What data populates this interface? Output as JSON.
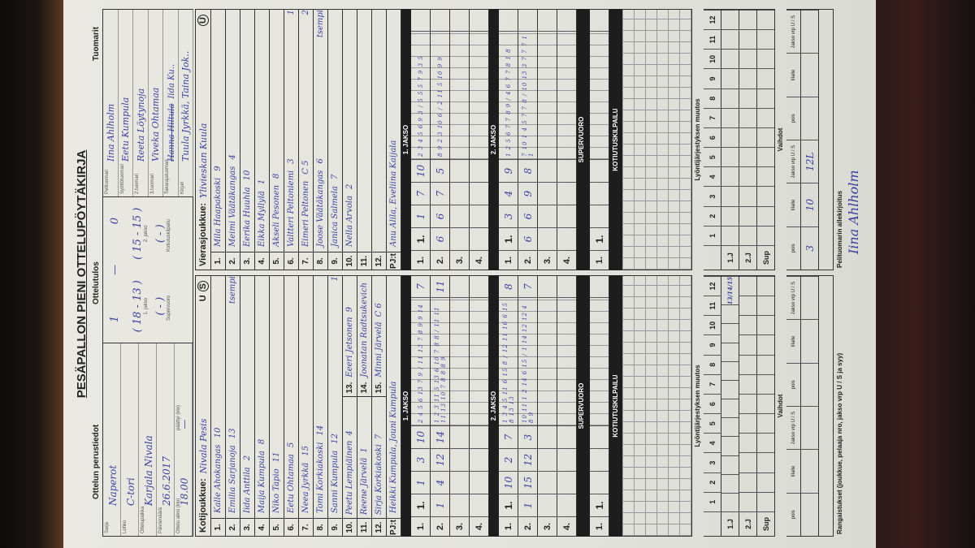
{
  "title": "PESÄPALLON PIENI OTTELUPÖYTÄKIRJA",
  "sections": {
    "basic": "Ottelun perustiedot",
    "result": "Ottelutulos",
    "referees": "Tuomarit"
  },
  "basic": [
    {
      "label": "Sarja",
      "value": "Naperot"
    },
    {
      "label": "Lohko",
      "value": "C-tori"
    },
    {
      "label": "Ottelupaikka",
      "value": "Karjala Nivala"
    },
    {
      "label": "Päivämäärä",
      "value": "26.6.2017"
    },
    {
      "label": "Ottelu alkoi (klo)",
      "value": "18.00",
      "label2": "päättyi (klo)",
      "value2": "—"
    }
  ],
  "result": {
    "total": {
      "home": "1",
      "away": "0"
    },
    "periods": [
      {
        "label": "1. jakso",
        "home": "18",
        "away": "13"
      },
      {
        "label": "2. jakso",
        "home": "15",
        "away": "15"
      },
      {
        "label": "Supervuoro",
        "home": "",
        "away": ""
      },
      {
        "label": "Kotiutuskilpailu",
        "home": "",
        "away": ""
      }
    ]
  },
  "referees": [
    {
      "label": "Pelituomari",
      "value": "Iina Ahlholm"
    },
    {
      "label": "Syöttötuomari",
      "value": "Eetu Kumpula"
    },
    {
      "label": "2.tuomari",
      "value": "Reeta Löytynoja"
    },
    {
      "label": "3.tuomari",
      "value": "Viveka Ohtamaa"
    },
    {
      "label": "Takarajatuomari",
      "value": "Iida Ku..",
      "struck": "Hanna Hiltula"
    },
    {
      "label": "Kirjuri",
      "value": "Tuula Jyrkkä, Taina Jok.."
    }
  ],
  "home": {
    "label": "Kotijoukkue:",
    "name": "Nivala Pesis",
    "us": [
      "U",
      "S"
    ],
    "circled": "S",
    "players": [
      {
        "num": "1.",
        "name": "Kalle Ahokangas",
        "shirt": "10"
      },
      {
        "num": "2.",
        "name": "Emilia Sarjanoja",
        "shirt": "13",
        "note": "tsempi"
      },
      {
        "num": "3.",
        "name": "Iida Anttila",
        "shirt": "2"
      },
      {
        "num": "4.",
        "name": "Maija Kumpula",
        "shirt": "8"
      },
      {
        "num": "5.",
        "name": "Niko Tapio",
        "shirt": "11"
      },
      {
        "num": "6.",
        "name": "Eetu Ohtamaa",
        "shirt": "5"
      },
      {
        "num": "7.",
        "name": "Neea Jyrkkä",
        "shirt": "15"
      },
      {
        "num": "8.",
        "name": "Tomi Korkiakoski",
        "shirt": "14"
      },
      {
        "num": "9.",
        "name": "Sanni Kumpula",
        "shirt": "12",
        "note": "1"
      },
      {
        "num": "10.",
        "name": "Peetu Lempiäinen",
        "shirt": "4",
        "sub": {
          "num": "13.",
          "name": "Eeeri Jetsonen",
          "shirt": "9"
        }
      },
      {
        "num": "11.",
        "name": "Reene Järvelä",
        "shirt": "1",
        "sub": {
          "num": "14.",
          "name": "Joonatan Radtsukevich",
          "shirt": ""
        }
      },
      {
        "num": "12.",
        "name": "Sirja Korkiakoski",
        "shirt": "7",
        "sub": {
          "num": "15.",
          "name": "Minni Järvelä",
          "shirt": "C 6"
        }
      }
    ],
    "pj_label": "PJ:t",
    "pj": "Heikki Kumpula, Jouni Kumpula",
    "periods": [
      {
        "title": "1. JAKSO",
        "rows": [
          {
            "label": "1.",
            "cells": [
              "1.",
              "1",
              "3",
              "10"
            ],
            "notes": "2 4 5 6 13 7 9 / 11 13 7 8 9 9 14",
            "total": "7"
          },
          {
            "label": "2.",
            "cells": [
              "1",
              "4",
              "12",
              "14"
            ],
            "notes": "1 2 3 11 5 13 6 10 7 8 8 / 11 11 11 13 10 7 8 8 8 9",
            "total": "11"
          },
          {
            "label": "3.",
            "cells": [
              "",
              "",
              "",
              ""
            ],
            "notes": "",
            "total": ""
          },
          {
            "label": "4.",
            "cells": [
              "",
              "",
              "",
              ""
            ],
            "notes": "",
            "total": ""
          }
        ]
      },
      {
        "title": "2. JAKSO",
        "rows": [
          {
            "label": "1.",
            "cells": [
              "1.",
              "10",
              "2",
              "7"
            ],
            "notes": "1 3 4 5 11 6 15 8 / 12 11 16 6 15 8 13 13",
            "total": "8"
          },
          {
            "label": "2.",
            "cells": [
              "1",
              "15",
              "12",
              "3"
            ],
            "notes": "10 11 1 2 14 6 15 / 1 14 12 12 4 8 9",
            "total": "7"
          },
          {
            "label": "3.",
            "cells": [
              "",
              "",
              "",
              ""
            ],
            "notes": "",
            "total": ""
          },
          {
            "label": "4.",
            "cells": [
              "",
              "",
              "",
              ""
            ],
            "notes": "",
            "total": ""
          }
        ]
      }
    ],
    "super": {
      "title": "SUPERVUORO",
      "row": {
        "label": "1.",
        "cells": [
          "1.",
          "",
          "",
          ""
        ],
        "notes": "",
        "total": ""
      }
    },
    "kotiutus": "KOTIUTUSKILPAILU",
    "footer": "Rangaistukset (joukkue, pelaaja nro, jakso vrp U / S ja syy)"
  },
  "away": {
    "label": "Vierasjoukkue:",
    "name": "Ylivieskan Kuula",
    "us": [
      "U"
    ],
    "circled": "U",
    "players": [
      {
        "num": "1.",
        "name": "Mila Haapakoski",
        "shirt": "9"
      },
      {
        "num": "2.",
        "name": "Meimi Väätäkangas",
        "shirt": "4"
      },
      {
        "num": "3.",
        "name": "Eerika Huuhla",
        "shirt": "10"
      },
      {
        "num": "4.",
        "name": "Eikka Myllylä",
        "shirt": "1"
      },
      {
        "num": "5.",
        "name": "Akseli Pesonen",
        "shirt": "8"
      },
      {
        "num": "6.",
        "name": "Valtteri Peltoniemi",
        "shirt": "3",
        "note": "1"
      },
      {
        "num": "7.",
        "name": "Eimeri Peltonen",
        "shirt": "C 5",
        "note": "2"
      },
      {
        "num": "8.",
        "name": "Joose Väätäkangas",
        "shirt": "6",
        "note": "tsempi"
      },
      {
        "num": "9.",
        "name": "Janica Salmela",
        "shirt": "7"
      },
      {
        "num": "10.",
        "name": "Nella Arvola",
        "shirt": "2"
      },
      {
        "num": "11.",
        "name": "",
        "shirt": ""
      },
      {
        "num": "12.",
        "name": "",
        "shirt": ""
      }
    ],
    "pj_label": "PJ:t",
    "pj": "Anu Alila, Eveliina Kaijala",
    "periods": [
      {
        "title": "1. JAKSO",
        "rows": [
          {
            "label": "1.",
            "cells": [
              "1.",
              "1",
              "7",
              "10"
            ],
            "notes": "2 3 4 5 6 9 3 / 5 5 5 7 9 3 5",
            "total": ""
          },
          {
            "label": "2.",
            "cells": [
              "6",
              "6",
              "7",
              "5"
            ],
            "notes": "8 9 2 3 10 6 / 2 11 5 10 9 9",
            "total": ""
          },
          {
            "label": "3.",
            "cells": [
              "",
              "",
              "",
              ""
            ],
            "notes": "",
            "total": ""
          },
          {
            "label": "4.",
            "cells": [
              "",
              "",
              "",
              ""
            ],
            "notes": "",
            "total": ""
          }
        ]
      },
      {
        "title": "2. JAKSO",
        "rows": [
          {
            "label": "1.",
            "cells": [
              "1.",
              "3",
              "4",
              "9"
            ],
            "notes": "1 2 5 6 7 7 8 9 / 4 6 7 7 8 1 8",
            "total": ""
          },
          {
            "label": "2.",
            "cells": [
              "6",
              "6",
              "9",
              "8"
            ],
            "notes": "7 10 1 4 5 7 7 8 / 10 13 3 7 7 7 1 1",
            "total": ""
          },
          {
            "label": "3.",
            "cells": [
              "",
              "",
              "",
              ""
            ],
            "notes": "",
            "total": ""
          },
          {
            "label": "4.",
            "cells": [
              "",
              "",
              "",
              ""
            ],
            "notes": "",
            "total": ""
          }
        ]
      }
    ],
    "super": {
      "title": "SUPERVUORO",
      "row": {
        "label": "1.",
        "cells": [
          "1.",
          "",
          "",
          ""
        ],
        "notes": "",
        "total": ""
      }
    },
    "kotiutus": "KOTIUTUSKILPAILU",
    "footer": "Pelituomarin allekirjoitus",
    "signature": "Iina Ahlholm"
  },
  "batting_change": {
    "title": "Lyöntijärjestyksen muutos",
    "cols": [
      "1",
      "2",
      "3",
      "4",
      "5",
      "6",
      "7",
      "8",
      "9",
      "10",
      "11",
      "12"
    ],
    "rows": [
      "1.J",
      "2.J",
      "Sup"
    ],
    "home_marks": {
      "1.J": {
        "12": "13/14/15"
      }
    }
  },
  "substitutions": {
    "title": "Vaihdot",
    "cols": [
      "pois",
      "tilalle",
      "Jakso vrp U / S",
      "pois",
      "tilalle",
      "Jakso vrp U / S"
    ],
    "away_row": [
      "3",
      "10",
      "12L",
      "",
      "",
      ""
    ]
  }
}
